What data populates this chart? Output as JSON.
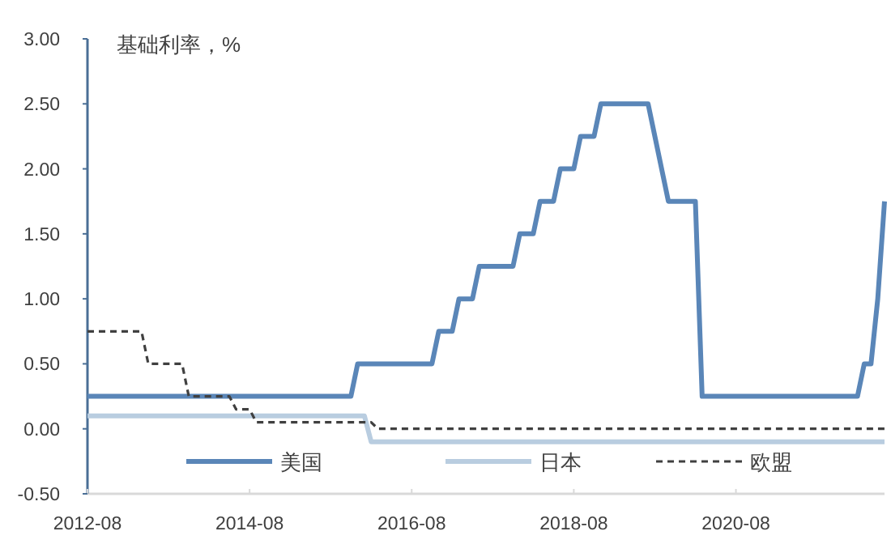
{
  "chart_data": {
    "type": "line",
    "ylabel": "基础利率，%",
    "xlim": [
      "2012-08",
      "2022-06"
    ],
    "xticks": [
      {
        "value": "2012-08",
        "label": "2012-08"
      },
      {
        "value": "2014-08",
        "label": "2014-08"
      },
      {
        "value": "2016-08",
        "label": "2016-08"
      },
      {
        "value": "2018-08",
        "label": "2018-08"
      },
      {
        "value": "2020-08",
        "label": "2020-08"
      }
    ],
    "ylim": [
      -0.5,
      3.0
    ],
    "yticks": [
      {
        "value": -0.5,
        "label": "-0.50"
      },
      {
        "value": 0,
        "label": "0.00"
      },
      {
        "value": 0.5,
        "label": "0.50"
      },
      {
        "value": 1.0,
        "label": "1.00"
      },
      {
        "value": 1.5,
        "label": "1.50"
      },
      {
        "value": 2.0,
        "label": "2.00"
      },
      {
        "value": 2.5,
        "label": "2.50"
      },
      {
        "value": 3.0,
        "label": "3.00"
      }
    ],
    "grid": false,
    "legend": "bottom",
    "marker": "none",
    "series": [
      {
        "name": "美国",
        "color": "#5a86b8",
        "line_style": "solid",
        "x": [
          "2012-08",
          "2015-11",
          "2015-12",
          "2016-11",
          "2016-12",
          "2017-02",
          "2017-03",
          "2017-05",
          "2017-06",
          "2017-11",
          "2017-12",
          "2018-02",
          "2018-03",
          "2018-05",
          "2018-06",
          "2018-08",
          "2018-09",
          "2018-11",
          "2018-12",
          "2019-07",
          "2019-10",
          "2020-02",
          "2020-03",
          "2022-02",
          "2022-03",
          "2022-04",
          "2022-05",
          "2022-06"
        ],
        "values": [
          0.25,
          0.25,
          0.5,
          0.5,
          0.75,
          0.75,
          1.0,
          1.0,
          1.25,
          1.25,
          1.5,
          1.5,
          1.75,
          1.75,
          2.0,
          2.0,
          2.25,
          2.25,
          2.5,
          2.5,
          1.75,
          1.75,
          0.25,
          0.25,
          0.5,
          0.5,
          1.0,
          1.75
        ]
      },
      {
        "name": "日本",
        "color": "#b9cde0",
        "line_style": "solid",
        "x": [
          "2012-08",
          "2016-01",
          "2016-02",
          "2022-06"
        ],
        "values": [
          0.1,
          0.1,
          -0.1,
          -0.1
        ]
      },
      {
        "name": "欧盟",
        "color": "#404040",
        "line_style": "dashed",
        "x": [
          "2012-08",
          "2013-04",
          "2013-05",
          "2013-10",
          "2013-11",
          "2014-05",
          "2014-06",
          "2014-08",
          "2014-09",
          "2016-02",
          "2016-03",
          "2022-06"
        ],
        "values": [
          0.75,
          0.75,
          0.5,
          0.5,
          0.25,
          0.25,
          0.15,
          0.15,
          0.05,
          0.05,
          0.0,
          0.0
        ]
      }
    ]
  }
}
